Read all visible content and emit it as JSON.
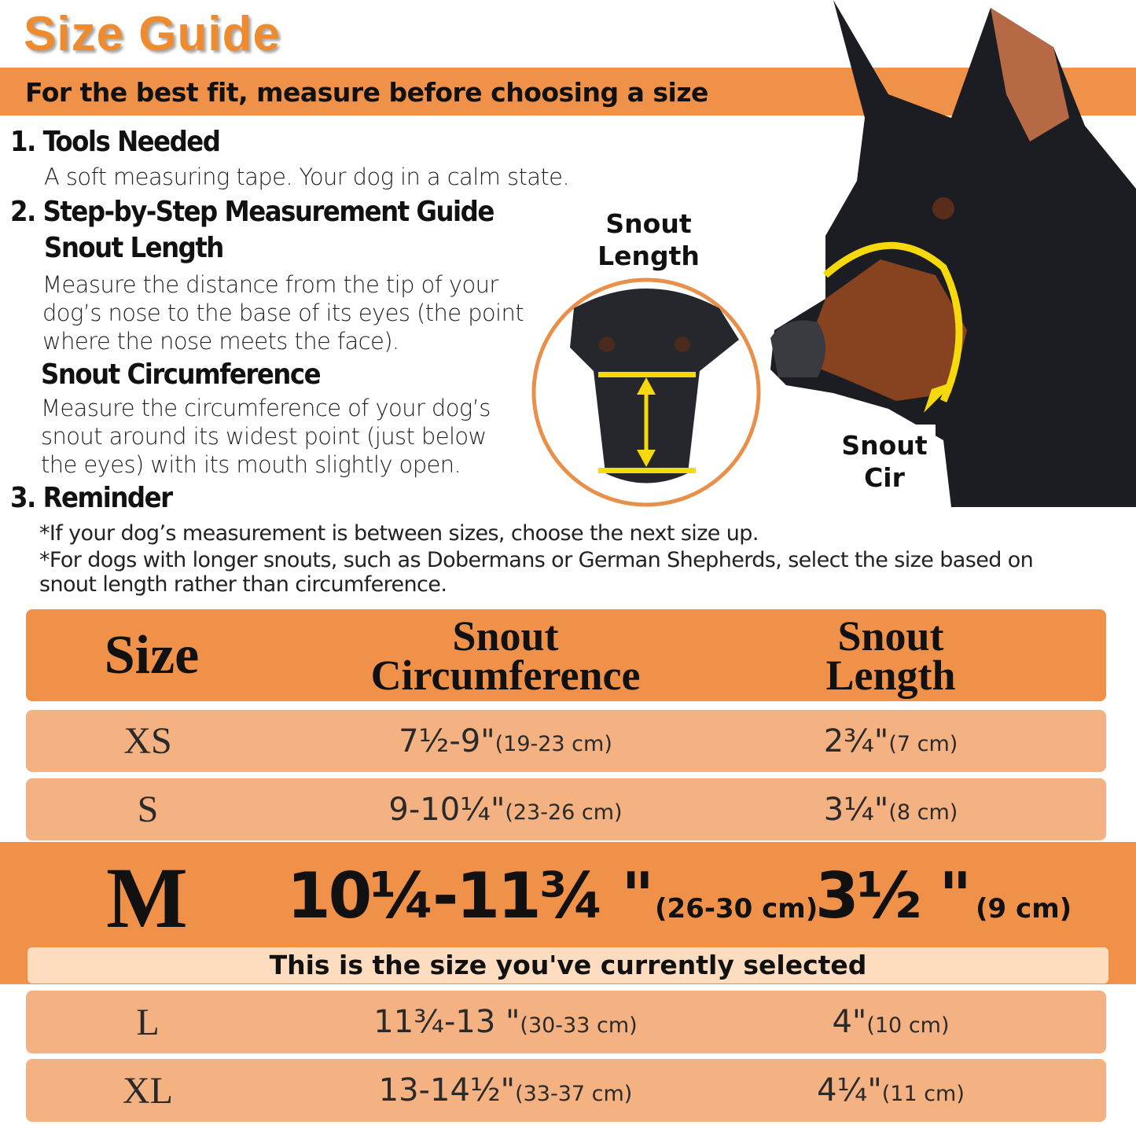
{
  "title": "Size Guide",
  "subtitle": "For the best fit, measure before choosing a size",
  "sections": {
    "tools": {
      "heading": "1. Tools Needed",
      "text": "A soft measuring tape. Your dog in a calm state."
    },
    "guide": {
      "heading": "2. Step-by-Step Measurement Guide",
      "length_heading": "Snout Length",
      "length_lines": [
        "Measure the distance from the tip of your",
        "dog’s nose to the base of its eyes (the point",
        "where the nose meets the face)."
      ],
      "circ_heading": "Snout Circumference",
      "circ_lines": [
        "Measure the circumference of your dog’s",
        "snout around its widest point (just below",
        "the eyes) with its mouth slightly open."
      ]
    },
    "reminder": {
      "heading": "3. Reminder",
      "lines": [
        "*If your dog’s measurement is between sizes, choose the next size up.",
        "*For dogs with longer snouts, such as Dobermans or German Shepherds, select the size based on",
        "snout length rather than circumference."
      ]
    }
  },
  "image_labels": {
    "length_1": "Snout",
    "length_2": "Length",
    "cir_1": "Snout",
    "cir_2": "Cir"
  },
  "colors": {
    "accent": "#F0914A",
    "row": "#F4B283",
    "title": "#EE8B2E",
    "selected_note_bg": "#FDDCC0",
    "measure_line": "#F5D90A"
  },
  "table": {
    "headers": {
      "size": "Size",
      "circ_1": "Snout",
      "circ_2": "Circumference",
      "len_1": "Snout",
      "len_2": "Length"
    },
    "rows": [
      {
        "size": "XS",
        "circ": "7½-9\"",
        "circ_cm": "(19-23 cm)",
        "len": "2¾\"",
        "len_cm": "(7 cm)"
      },
      {
        "size": "S",
        "circ": "9-10¼\"",
        "circ_cm": "(23-26 cm)",
        "len": "3¼\"",
        "len_cm": "(8 cm)"
      },
      {
        "size": "M",
        "circ": "10¼-11¾ \"",
        "circ_cm": "(26-30 cm)",
        "len": "3½ \"",
        "len_cm": "(9 cm)",
        "selected": true
      },
      {
        "size": "L",
        "circ": "11¾-13 \"",
        "circ_cm": "(30-33 cm)",
        "len": "4\"",
        "len_cm": "(10 cm)"
      },
      {
        "size": "XL",
        "circ": "13-14½\"",
        "circ_cm": "(33-37 cm)",
        "len": "4¼\"",
        "len_cm": "(11 cm)"
      }
    ],
    "selected_note": "This is the size you've currently selected"
  }
}
